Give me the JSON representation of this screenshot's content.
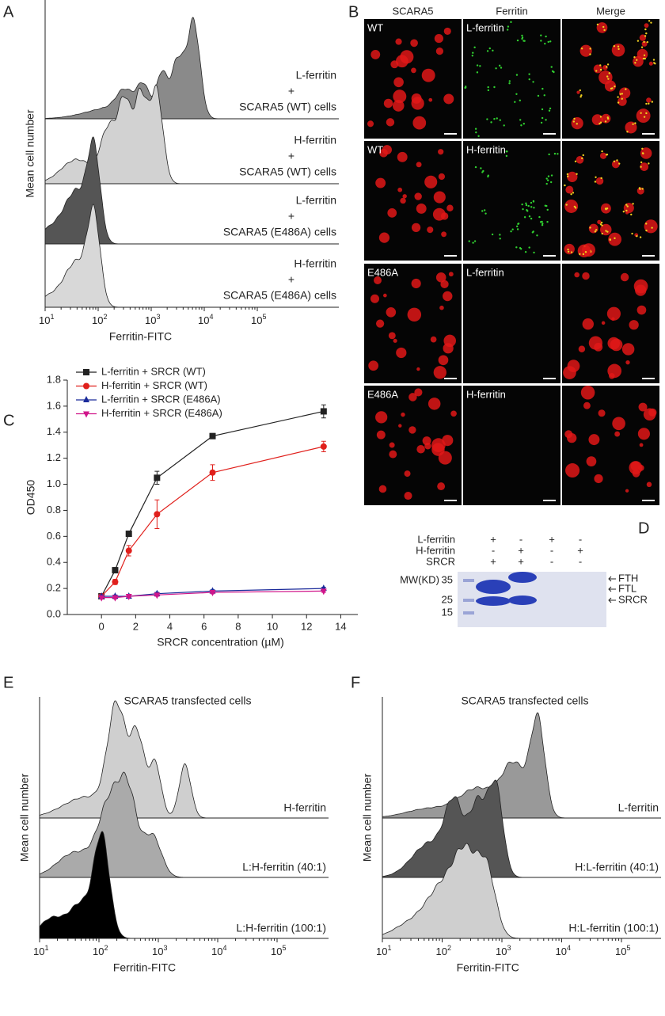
{
  "panels": {
    "A": {
      "label": "A",
      "y_label": "Mean cell number",
      "x_label": "Ferritin-FITC",
      "tick_base": "10",
      "tick_exponents": [
        "1",
        "2",
        "3",
        "4",
        "5"
      ],
      "traces": [
        {
          "lines": [
            "L-ferritin",
            "+",
            "SCARA5 (WT) cells"
          ]
        },
        {
          "lines": [
            "H-ferritin",
            "+",
            "SCARA5 (WT) cells"
          ]
        },
        {
          "lines": [
            "L-ferritin",
            "+",
            "SCARA5 (E486A) cells"
          ]
        },
        {
          "lines": [
            "H-ferritin",
            "+",
            "SCARA5 (E486A) cells"
          ]
        }
      ]
    },
    "B": {
      "label": "B",
      "columns": [
        "SCARA5",
        "Ferritin",
        "Merge"
      ],
      "rows": [
        {
          "left": "WT",
          "middle": "L-ferritin"
        },
        {
          "left": "WT",
          "middle": "H-ferritin"
        },
        {
          "left": "E486A",
          "middle": "L-ferritin"
        },
        {
          "left": "E486A",
          "middle": "H-ferritin"
        }
      ]
    },
    "D": {
      "label": "D",
      "conditions": [
        {
          "name": "L-ferritin",
          "signs": [
            "+",
            "-",
            "+",
            "-"
          ]
        },
        {
          "name": "H-ferritin",
          "signs": [
            "-",
            "+",
            "-",
            "+"
          ]
        },
        {
          "name": "SRCR",
          "signs": [
            "+",
            "+",
            "-",
            "-"
          ]
        }
      ],
      "mw_title": "MW(KD)",
      "mw_markers": [
        "35",
        "25",
        "15"
      ],
      "bands": [
        "FTH",
        "FTL",
        "SRCR"
      ]
    },
    "E": {
      "label": "E",
      "title": "SCARA5 transfected cells",
      "y_label": "Mean cell number",
      "x_label": "Ferritin-FITC",
      "tick_base": "10",
      "tick_exponents": [
        "1",
        "2",
        "3",
        "4",
        "5"
      ],
      "traces": [
        "H-ferritin",
        "L:H-ferritin (40:1)",
        "L:H-ferritin (100:1)"
      ]
    },
    "F": {
      "label": "F",
      "title": "SCARA5 transfected cells",
      "y_label": "Mean cell number",
      "x_label": "Ferritin-FITC",
      "tick_base": "10",
      "tick_exponents": [
        "1",
        "2",
        "3",
        "4",
        "5"
      ],
      "traces": [
        "L-ferritin",
        "H:L-ferritin (40:1)",
        "H:L-ferritin (100:1)"
      ]
    }
  },
  "chart_data": {
    "type": "line",
    "panel_label": "C",
    "x_label": "SRCR concentration (µM)",
    "y_label": "OD450",
    "x": [
      0,
      0.8,
      1.6,
      3.25,
      6.5,
      13
    ],
    "xlim": [
      -2,
      15
    ],
    "xticks": [
      0,
      2,
      4,
      6,
      8,
      10,
      12,
      14
    ],
    "ylim": [
      0,
      1.8
    ],
    "yticks": [
      {
        "value": 0,
        "label": "0.0"
      },
      {
        "value": 0.2,
        "label": "0.2"
      },
      {
        "value": 0.4,
        "label": "0.4"
      },
      {
        "value": 0.6,
        "label": "0.6"
      },
      {
        "value": 0.8,
        "label": "0.8"
      },
      {
        "value": 1,
        "label": "1.0"
      },
      {
        "value": 1.2,
        "label": "1.2"
      },
      {
        "value": 1.4,
        "label": "1.4"
      },
      {
        "value": 1.6,
        "label": "1.6"
      },
      {
        "value": 1.8,
        "label": "1.8"
      }
    ],
    "series": [
      {
        "name": "L-ferritin + SRCR (WT)",
        "color": "#222222",
        "marker": "square",
        "values": [
          0.14,
          0.34,
          0.62,
          1.05,
          1.37,
          1.56
        ],
        "errors": [
          0.01,
          0.02,
          0.02,
          0.05,
          0.02,
          0.05
        ]
      },
      {
        "name": "H-ferritin + SRCR (WT)",
        "color": "#e0201c",
        "marker": "circle",
        "values": [
          0.14,
          0.25,
          0.49,
          0.77,
          1.09,
          1.29
        ],
        "errors": [
          0.01,
          0.02,
          0.04,
          0.11,
          0.06,
          0.04
        ]
      },
      {
        "name": "L-ferritin + SRCR (E486A)",
        "color": "#1a2a9a",
        "marker": "triangle",
        "values": [
          0.14,
          0.14,
          0.14,
          0.16,
          0.18,
          0.2
        ],
        "errors": [
          0.01,
          0.01,
          0.01,
          0.01,
          0.01,
          0.01
        ]
      },
      {
        "name": "H-ferritin + SRCR (E486A)",
        "color": "#d0158a",
        "marker": "triangle-down",
        "values": [
          0.13,
          0.13,
          0.14,
          0.15,
          0.17,
          0.18
        ],
        "errors": [
          0.01,
          0.01,
          0.01,
          0.01,
          0.01,
          0.01
        ]
      }
    ]
  }
}
